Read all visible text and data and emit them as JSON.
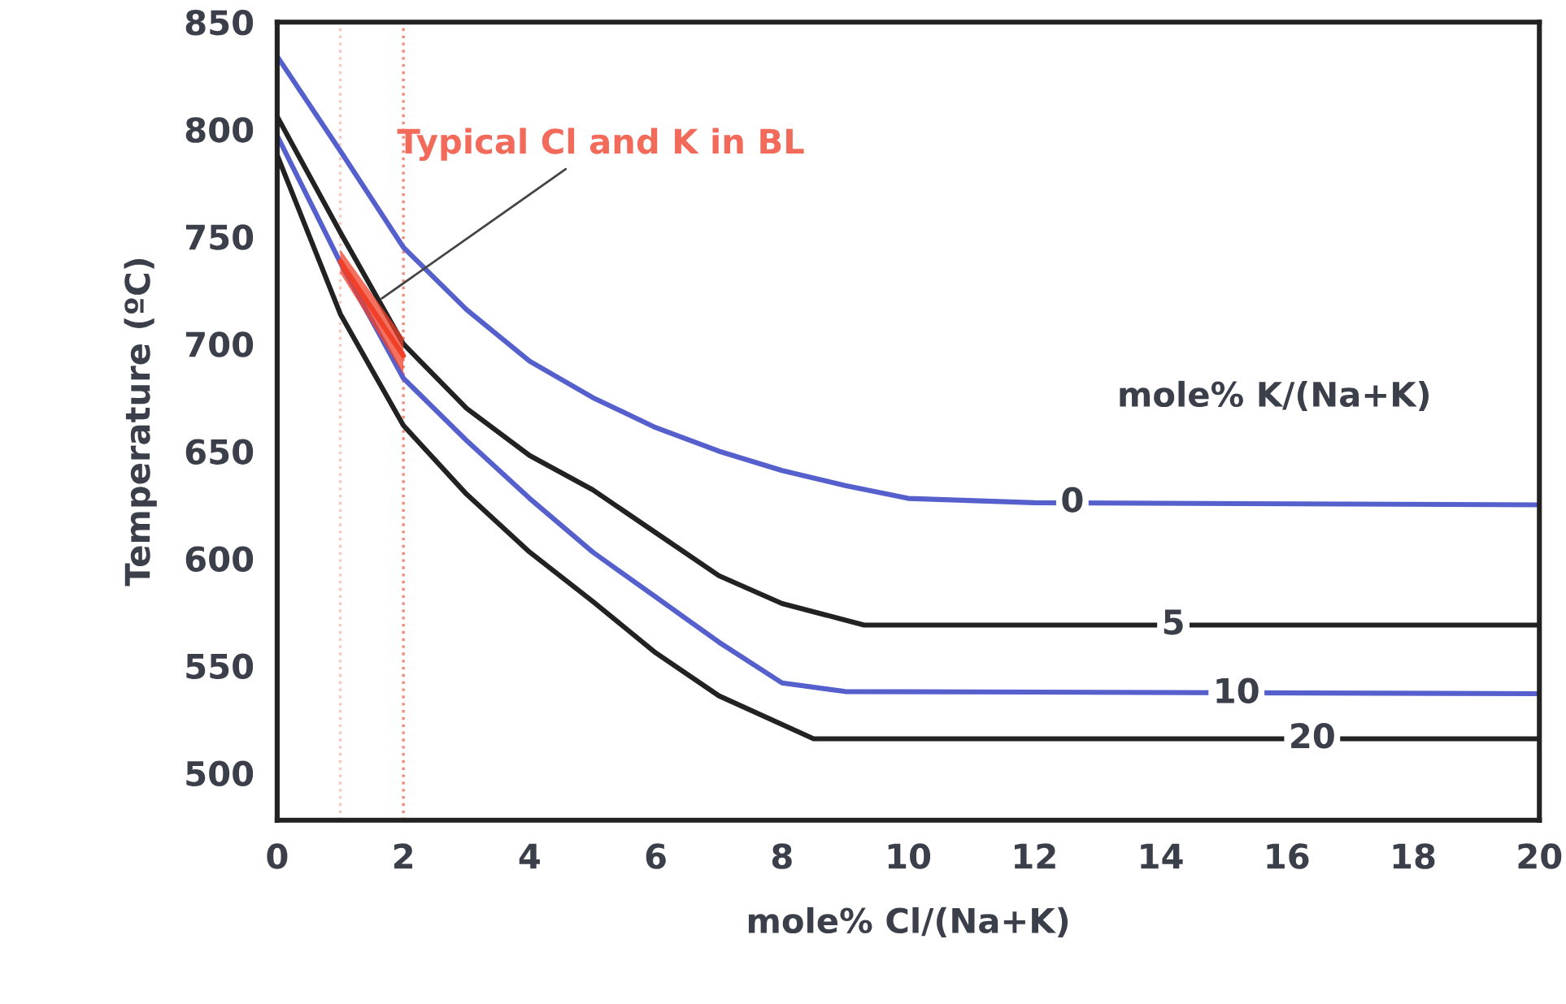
{
  "chart_data": {
    "type": "line",
    "xlabel": "mole% Cl/(Na+K)",
    "ylabel": "Temperature (ºC)",
    "xlim": [
      0,
      20
    ],
    "ylim": [
      478,
      850
    ],
    "xticks": [
      0,
      2,
      4,
      6,
      8,
      10,
      12,
      14,
      16,
      18,
      20
    ],
    "yticks": [
      500,
      550,
      600,
      650,
      700,
      750,
      800,
      850
    ],
    "grid": false,
    "marker": "none",
    "line_style": "solid",
    "series": [
      {
        "color": "#5560cc",
        "x": [
          0,
          1,
          2,
          3,
          4,
          5,
          6,
          7,
          8,
          9,
          10,
          12,
          20
        ],
        "values": [
          834,
          790,
          745,
          716,
          692,
          675,
          661,
          650,
          641,
          634,
          628,
          626,
          625
        ]
      },
      {
        "color": "#222222",
        "x": [
          0,
          1,
          2,
          3,
          4,
          5,
          6,
          7,
          8,
          9.3,
          20
        ],
        "values": [
          806,
          752,
          700,
          670,
          648,
          632,
          612,
          592,
          579,
          569,
          569
        ]
      },
      {
        "color": "#5560cc",
        "x": [
          0,
          1,
          2,
          3,
          4,
          5,
          6,
          7,
          8,
          9,
          20
        ],
        "values": [
          797,
          738,
          684,
          655,
          628,
          603,
          582,
          561,
          542,
          538,
          537
        ]
      },
      {
        "color": "#222222",
        "x": [
          0,
          1,
          2,
          3,
          4,
          5,
          6,
          7,
          8.5,
          20
        ],
        "values": [
          788,
          714,
          662,
          630,
          603,
          580,
          556,
          536,
          516,
          516
        ]
      },
      {
        "color": "#f0402a",
        "x": [
          1,
          2
        ],
        "values": [
          738.5,
          694.5
        ],
        "lower": [
          733,
          686
        ],
        "upper": [
          744,
          703
        ]
      }
    ],
    "ref_lines": [
      {
        "axis": "x",
        "value": 1,
        "color": "#f8c8c0",
        "line_style": "dotted"
      },
      {
        "axis": "x",
        "value": 2,
        "color": "#f08a7a",
        "line_style": "dotted"
      }
    ],
    "annotations": [
      "mole% K/(Na+K)",
      {
        "text": "Typical Cl and K in BL",
        "x": 1.6,
        "y": 720
      },
      {
        "text": "0",
        "x": 12.6,
        "y": 626
      },
      {
        "text": "5",
        "x": 14.2,
        "y": 569
      },
      {
        "text": "10",
        "x": 15.2,
        "y": 537
      },
      {
        "text": "20",
        "x": 16.4,
        "y": 516
      }
    ]
  }
}
